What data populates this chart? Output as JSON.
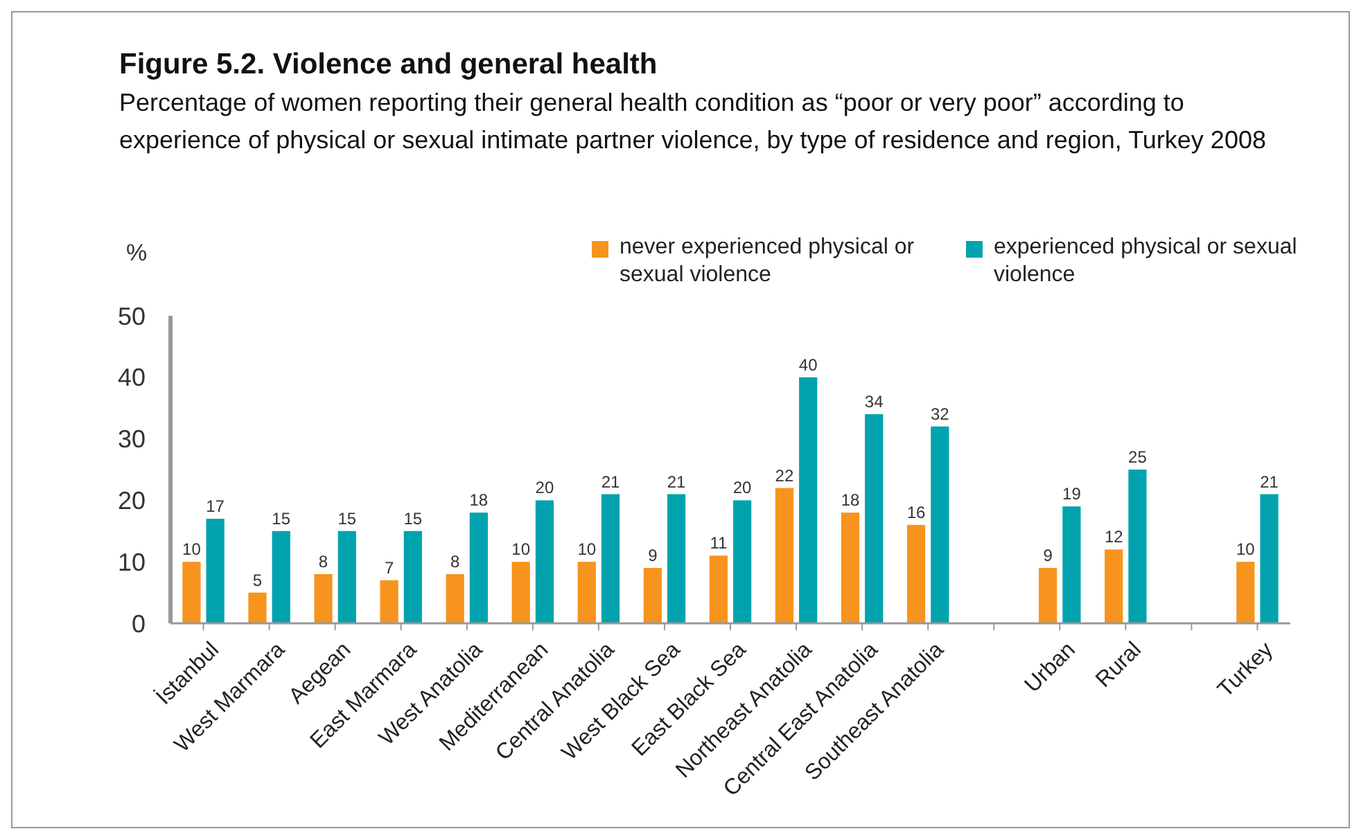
{
  "chart_data": {
    "type": "bar",
    "title": "Figure 5.2. Violence and general health",
    "subtitle": "Percentage of women reporting their general health condition as “poor or very poor” according to experience of physical or sexual intimate partner violence, by type of residence and region, Turkey 2008",
    "ylabel": "%",
    "categories": [
      "İstanbul",
      "West Marmara",
      "Aegean",
      "East Marmara",
      "West Anatolia",
      "Mediterranean",
      "Central Anatolia",
      "West Black Sea",
      "East Black Sea",
      "Northeast Anatolia",
      "Central East Anatolia",
      "Southeast Anatolia",
      null,
      "Urban",
      "Rural",
      null,
      "Turkey"
    ],
    "series": [
      {
        "name": "never experienced physical or sexual violence",
        "color": "#f7941d",
        "values": [
          10,
          5,
          8,
          7,
          8,
          10,
          10,
          9,
          11,
          22,
          18,
          16,
          null,
          9,
          12,
          null,
          10
        ]
      },
      {
        "name": "experienced physical or sexual violence",
        "color": "#00a3ad",
        "values": [
          17,
          15,
          15,
          15,
          18,
          20,
          21,
          21,
          20,
          40,
          34,
          32,
          null,
          19,
          25,
          null,
          21
        ]
      }
    ],
    "ylim": [
      0,
      50
    ],
    "yticks": [
      0,
      10,
      20,
      30,
      40,
      50
    ],
    "grid": false,
    "legend": "top right",
    "data_labels": true
  }
}
